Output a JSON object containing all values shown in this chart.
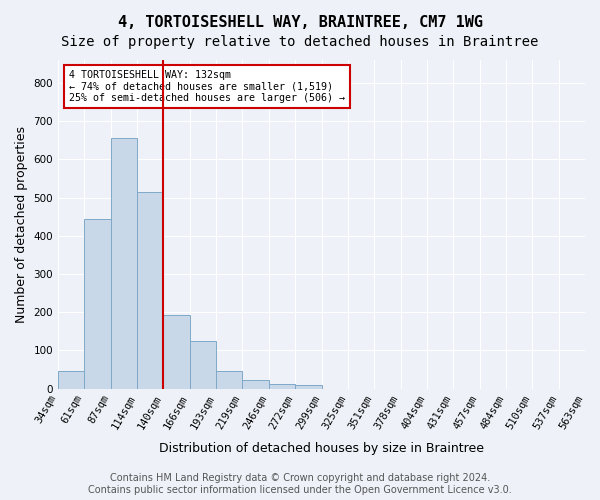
{
  "title": "4, TORTOISESHELL WAY, BRAINTREE, CM7 1WG",
  "subtitle": "Size of property relative to detached houses in Braintree",
  "xlabel": "Distribution of detached houses by size in Braintree",
  "ylabel": "Number of detached properties",
  "bar_values": [
    45,
    443,
    655,
    515,
    192,
    125,
    47,
    23,
    12,
    9,
    0,
    0,
    0,
    0,
    0,
    0,
    0,
    0,
    0,
    0
  ],
  "bin_labels": [
    "34sqm",
    "61sqm",
    "87sqm",
    "114sqm",
    "140sqm",
    "166sqm",
    "193sqm",
    "219sqm",
    "246sqm",
    "272sqm",
    "299sqm",
    "325sqm",
    "351sqm",
    "378sqm",
    "404sqm",
    "431sqm",
    "457sqm",
    "484sqm",
    "510sqm",
    "537sqm",
    "563sqm"
  ],
  "bar_color": "#c8d8e8",
  "bar_edgecolor": "#7fa8c8",
  "vline_x": 4,
  "vline_color": "#cc0000",
  "annotation_text": "4 TORTOISESHELL WAY: 132sqm\n← 74% of detached houses are smaller (1,519)\n25% of semi-detached houses are larger (506) →",
  "annotation_box_color": "#ffffff",
  "annotation_box_edgecolor": "#cc0000",
  "ylim": [
    0,
    860
  ],
  "yticks": [
    0,
    100,
    200,
    300,
    400,
    500,
    600,
    700,
    800
  ],
  "footer_text": "Contains HM Land Registry data © Crown copyright and database right 2024.\nContains public sector information licensed under the Open Government Licence v3.0.",
  "bg_color": "#eef2f8",
  "plot_bg_color": "#eef2f8",
  "grid_color": "#ffffff",
  "title_fontsize": 11,
  "subtitle_fontsize": 10,
  "label_fontsize": 9,
  "tick_fontsize": 7.5,
  "footer_fontsize": 7
}
